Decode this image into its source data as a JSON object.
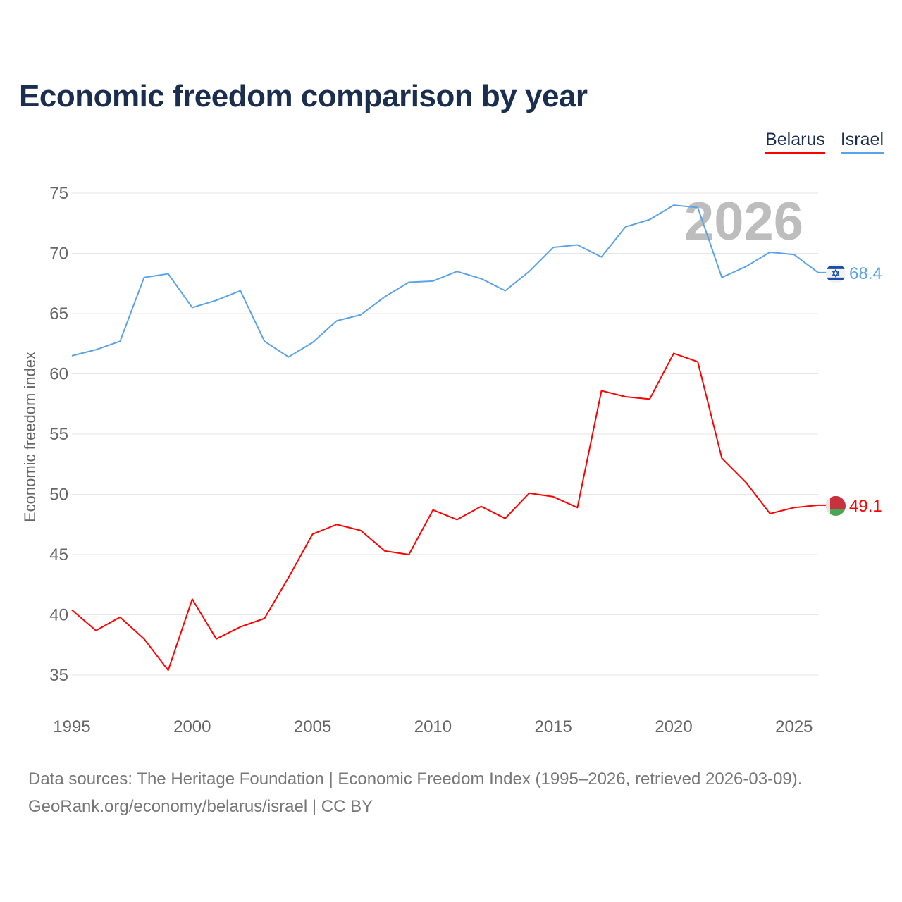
{
  "title": "Economic freedom comparison by year",
  "watermark_year": "2026",
  "footer": {
    "line1": "Data sources: The Heritage Foundation | Economic Freedom Index (1995–2026, retrieved 2026-03-09).",
    "line2": "GeoRank.org/economy/belarus/israel | CC BY"
  },
  "chart_data": {
    "type": "line",
    "title": "Economic freedom comparison by year",
    "xlabel": "",
    "ylabel": "Economic freedom index",
    "xlim": [
      1995,
      2026
    ],
    "ylim": [
      35,
      75
    ],
    "x_ticks": [
      1995,
      2000,
      2005,
      2010,
      2015,
      2020,
      2025
    ],
    "y_ticks": [
      35,
      40,
      45,
      50,
      55,
      60,
      65,
      70,
      75
    ],
    "grid": true,
    "legend_position": "top-right",
    "x": [
      1995,
      1996,
      1997,
      1998,
      1999,
      2000,
      2001,
      2002,
      2003,
      2004,
      2005,
      2006,
      2007,
      2008,
      2009,
      2010,
      2011,
      2012,
      2013,
      2014,
      2015,
      2016,
      2017,
      2018,
      2019,
      2020,
      2021,
      2022,
      2023,
      2024,
      2025,
      2026
    ],
    "series": [
      {
        "name": "Belarus",
        "color": "#ff0000",
        "end_label": "49.1",
        "flag": "belarus-flag",
        "values": [
          40.4,
          38.7,
          39.8,
          38.0,
          35.4,
          41.3,
          38.0,
          39.0,
          39.7,
          43.1,
          46.7,
          47.5,
          47.0,
          45.3,
          45.0,
          48.7,
          47.9,
          49.0,
          48.0,
          50.1,
          49.8,
          48.9,
          58.6,
          58.1,
          57.9,
          61.7,
          61.0,
          53.0,
          51.0,
          48.4,
          48.9,
          49.1
        ]
      },
      {
        "name": "Israel",
        "color": "#5ba3e8",
        "end_label": "68.4",
        "flag": "israel-flag",
        "values": [
          61.5,
          62.0,
          62.7,
          68.0,
          68.3,
          65.5,
          66.1,
          66.9,
          62.7,
          61.4,
          62.6,
          64.4,
          64.9,
          66.4,
          67.6,
          67.7,
          68.5,
          67.9,
          66.9,
          68.5,
          70.5,
          70.7,
          69.7,
          72.2,
          72.8,
          74.0,
          73.8,
          68.0,
          68.9,
          70.1,
          69.9,
          68.4
        ]
      }
    ]
  }
}
